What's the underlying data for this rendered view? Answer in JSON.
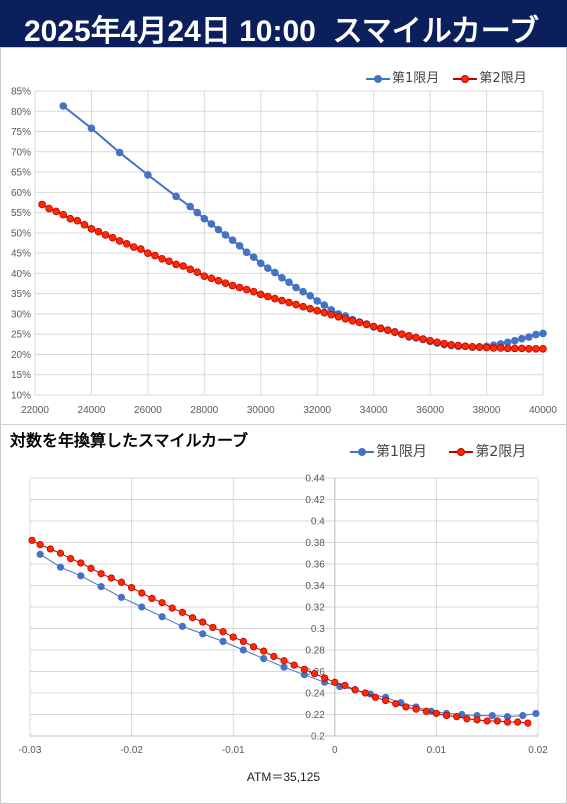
{
  "header": {
    "date": "2025年4月24日 10:00",
    "title": "スマイルカーブ"
  },
  "colors": {
    "series1": "#4472c4",
    "series2": "#ff2a00",
    "series2_edge": "#c00000",
    "header_bg": "#0a1f5c"
  },
  "chart_data": [
    {
      "type": "line",
      "title": "",
      "xlabel": "",
      "ylabel": "",
      "xlim": [
        22000,
        40000
      ],
      "ylim": [
        10,
        85
      ],
      "x_ticks": [
        22000,
        24000,
        26000,
        28000,
        30000,
        32000,
        34000,
        36000,
        38000,
        40000
      ],
      "y_ticks": [
        10,
        15,
        20,
        25,
        30,
        35,
        40,
        45,
        50,
        55,
        60,
        65,
        70,
        75,
        80,
        85
      ],
      "y_tick_suffix": "%",
      "grid": true,
      "legend": "top-right",
      "series": [
        {
          "name": "第1限月",
          "x": [
            23000,
            24000,
            25000,
            26000,
            27000,
            27500,
            27750,
            28000,
            28250,
            28500,
            28750,
            29000,
            29250,
            29500,
            29750,
            30000,
            30250,
            30500,
            30750,
            31000,
            31250,
            31500,
            31750,
            32000,
            32250,
            32500,
            32750,
            33000,
            33250,
            33500,
            33750,
            34000,
            34250,
            34500,
            34750,
            35000,
            35250,
            35500,
            35750,
            36000,
            36250,
            36500,
            36750,
            37000,
            37250,
            37500,
            37750,
            38000,
            38250,
            38500,
            38750,
            39000,
            39250,
            39500,
            39750,
            40000
          ],
          "y": [
            81.3,
            75.8,
            69.8,
            64.3,
            59.0,
            56.5,
            55.0,
            53.5,
            52.2,
            50.8,
            49.5,
            48.2,
            46.8,
            45.2,
            44.0,
            42.5,
            41.3,
            40.2,
            38.9,
            37.8,
            36.5,
            35.5,
            34.5,
            33.2,
            32.2,
            31.0,
            30.0,
            29.5,
            28.6,
            28.0,
            27.5,
            26.8,
            26.5,
            26.0,
            25.6,
            25.0,
            24.3,
            24.1,
            23.7,
            23.2,
            22.8,
            22.4,
            22.2,
            22.0,
            22.0,
            21.8,
            21.9,
            22.0,
            22.3,
            22.6,
            23.0,
            23.4,
            23.9,
            24.3,
            24.9,
            25.2
          ]
        },
        {
          "name": "第2限月",
          "x": [
            22250,
            22500,
            22750,
            23000,
            23250,
            23500,
            23750,
            24000,
            24250,
            24500,
            24750,
            25000,
            25250,
            25500,
            25750,
            26000,
            26250,
            26500,
            26750,
            27000,
            27250,
            27500,
            27750,
            28000,
            28250,
            28500,
            28750,
            29000,
            29250,
            29500,
            29750,
            30000,
            30250,
            30500,
            30750,
            31000,
            31250,
            31500,
            31750,
            32000,
            32250,
            32500,
            32750,
            33000,
            33250,
            33500,
            33750,
            34000,
            34250,
            34500,
            34750,
            35000,
            35250,
            35500,
            35750,
            36000,
            36250,
            36500,
            36750,
            37000,
            37250,
            37500,
            37750,
            38000,
            38250,
            38500,
            38750,
            39000,
            39250,
            39500,
            39750,
            40000
          ],
          "y": [
            57.0,
            56.0,
            55.3,
            54.5,
            53.5,
            53.0,
            52.0,
            51.0,
            50.3,
            49.5,
            48.8,
            48.0,
            47.3,
            46.5,
            46.0,
            45.0,
            44.4,
            43.6,
            43.0,
            42.2,
            41.8,
            41.0,
            40.3,
            39.3,
            38.8,
            38.2,
            37.6,
            37.0,
            36.5,
            36.0,
            35.5,
            34.8,
            34.3,
            33.8,
            33.3,
            32.8,
            32.3,
            31.8,
            31.3,
            30.8,
            30.3,
            29.8,
            29.3,
            28.8,
            28.3,
            27.9,
            27.4,
            26.9,
            26.4,
            26.0,
            25.5,
            25.0,
            24.6,
            24.2,
            23.8,
            23.4,
            23.0,
            22.7,
            22.4,
            22.2,
            22.0,
            21.9,
            21.8,
            21.7,
            21.6,
            21.6,
            21.5,
            21.5,
            21.5,
            21.4,
            21.4,
            21.4
          ]
        }
      ]
    },
    {
      "type": "scatter",
      "title": "対数を年換算したスマイルカーブ",
      "xlabel": "ATM＝35,125",
      "ylabel": "",
      "xlim": [
        -0.03,
        0.02
      ],
      "ylim": [
        0.2,
        0.44
      ],
      "x_ticks": [
        -0.03,
        -0.02,
        -0.01,
        0,
        0.01,
        0.02
      ],
      "y_ticks": [
        0.2,
        0.22,
        0.24,
        0.26,
        0.28,
        0.3,
        0.32,
        0.34,
        0.36,
        0.38,
        0.4,
        0.42,
        0.44
      ],
      "grid": true,
      "legend": "top-right",
      "series": [
        {
          "name": "第1限月",
          "x": [
            -0.029,
            -0.027,
            -0.025,
            -0.023,
            -0.021,
            -0.019,
            -0.017,
            -0.015,
            -0.013,
            -0.011,
            -0.009,
            -0.007,
            -0.005,
            -0.003,
            -0.001,
            0.0005,
            0.002,
            0.0035,
            0.005,
            0.0065,
            0.008,
            0.0095,
            0.011,
            0.0125,
            0.014,
            0.0155,
            0.017,
            0.0185,
            0.0198
          ],
          "y": [
            0.369,
            0.357,
            0.349,
            0.339,
            0.329,
            0.32,
            0.311,
            0.302,
            0.295,
            0.288,
            0.28,
            0.272,
            0.264,
            0.257,
            0.25,
            0.246,
            0.243,
            0.239,
            0.236,
            0.231,
            0.227,
            0.223,
            0.221,
            0.22,
            0.219,
            0.219,
            0.218,
            0.219,
            0.221
          ]
        },
        {
          "name": "第2限月",
          "x": [
            -0.0298,
            -0.029,
            -0.028,
            -0.027,
            -0.026,
            -0.025,
            -0.024,
            -0.023,
            -0.022,
            -0.021,
            -0.02,
            -0.019,
            -0.018,
            -0.017,
            -0.016,
            -0.015,
            -0.014,
            -0.013,
            -0.012,
            -0.011,
            -0.01,
            -0.009,
            -0.008,
            -0.007,
            -0.006,
            -0.005,
            -0.004,
            -0.003,
            -0.002,
            -0.001,
            0.0,
            0.001,
            0.002,
            0.003,
            0.004,
            0.005,
            0.006,
            0.007,
            0.008,
            0.009,
            0.01,
            0.011,
            0.012,
            0.013,
            0.014,
            0.015,
            0.016,
            0.017,
            0.018,
            0.019
          ],
          "y": [
            0.382,
            0.378,
            0.374,
            0.37,
            0.365,
            0.361,
            0.356,
            0.351,
            0.347,
            0.343,
            0.338,
            0.333,
            0.328,
            0.324,
            0.319,
            0.315,
            0.31,
            0.306,
            0.301,
            0.297,
            0.292,
            0.288,
            0.283,
            0.279,
            0.274,
            0.27,
            0.266,
            0.262,
            0.258,
            0.254,
            0.25,
            0.247,
            0.243,
            0.24,
            0.236,
            0.233,
            0.23,
            0.227,
            0.225,
            0.223,
            0.221,
            0.219,
            0.218,
            0.216,
            0.215,
            0.214,
            0.214,
            0.213,
            0.213,
            0.212
          ]
        }
      ]
    }
  ]
}
